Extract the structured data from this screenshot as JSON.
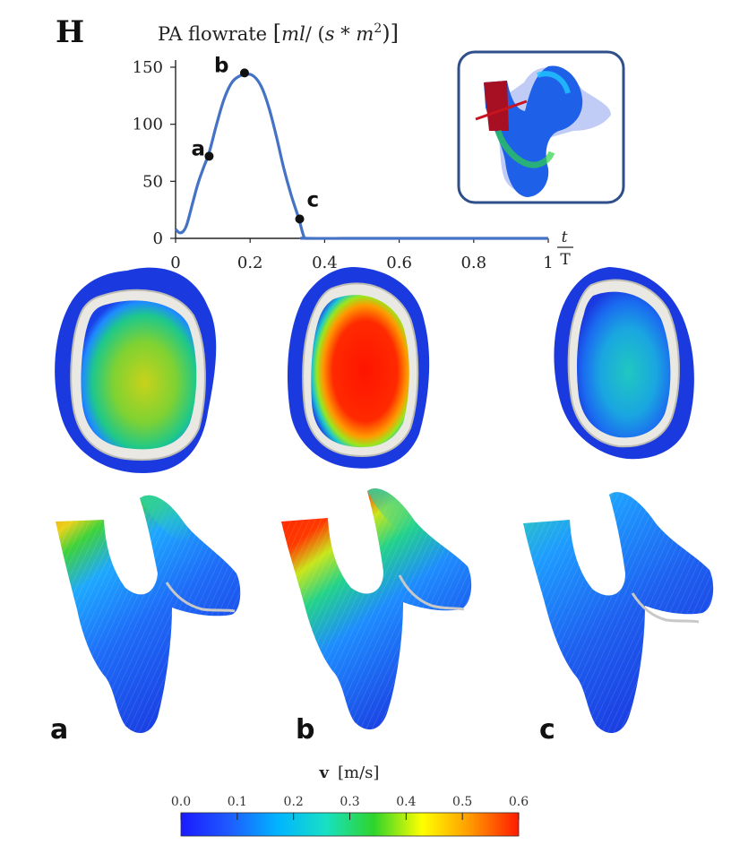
{
  "panel_letter": "H",
  "chart_data": {
    "type": "line",
    "title": "PA flowrate [ml/ (s * m²)]",
    "title_parts": {
      "main": "PA flowrate ",
      "lb": "[",
      "ml": "ml",
      "slash": "/ (",
      "s": "s",
      "star": " * ",
      "m": "m",
      "sup": "2",
      "rb": ")]"
    },
    "xlabel": {
      "num": "t",
      "den": "T"
    },
    "xlim": [
      0,
      1
    ],
    "ylim": [
      0,
      150
    ],
    "xticks": [
      0,
      0.2,
      0.4,
      0.6,
      0.8,
      1
    ],
    "xtick_labels": [
      "0",
      "0.2",
      "0.4",
      "0.6",
      "0.8",
      "1"
    ],
    "yticks": [
      0,
      50,
      100,
      150
    ],
    "ytick_labels": [
      "0",
      "50",
      "100",
      "150"
    ],
    "series": [
      {
        "color": "#4472c4",
        "x": [
          0,
          0.01,
          0.02,
          0.03,
          0.045,
          0.06,
          0.075,
          0.09,
          0.11,
          0.13,
          0.15,
          0.17,
          0.19,
          0.21,
          0.23,
          0.25,
          0.27,
          0.29,
          0.31,
          0.33,
          0.34,
          0.345,
          0.35,
          0.5,
          0.75,
          1.0
        ],
        "y": [
          8,
          5,
          6,
          12,
          30,
          48,
          62,
          75,
          100,
          122,
          136,
          142,
          144,
          142,
          133,
          115,
          90,
          62,
          38,
          18,
          6,
          1,
          0,
          0,
          0,
          0
        ]
      }
    ],
    "markers": [
      {
        "label": "a",
        "x": 0.09,
        "y": 72
      },
      {
        "label": "b",
        "x": 0.185,
        "y": 145
      },
      {
        "label": "c",
        "x": 0.333,
        "y": 17
      }
    ]
  },
  "inset": {
    "color": "#2e4f8a"
  },
  "columns": [
    {
      "label": "a"
    },
    {
      "label": "b"
    },
    {
      "label": "c"
    }
  ],
  "colorbar": {
    "title_symbol": "v",
    "title_unit": "[m/s]",
    "ticks": [
      "0.0",
      "0.1",
      "0.2",
      "0.3",
      "0.4",
      "0.5",
      "0.6"
    ],
    "stops": [
      "#1a1aff",
      "#1e5bff",
      "#00b4ff",
      "#18e0c4",
      "#2ed42a",
      "#ffff00",
      "#ff9900",
      "#ff1a00"
    ]
  }
}
